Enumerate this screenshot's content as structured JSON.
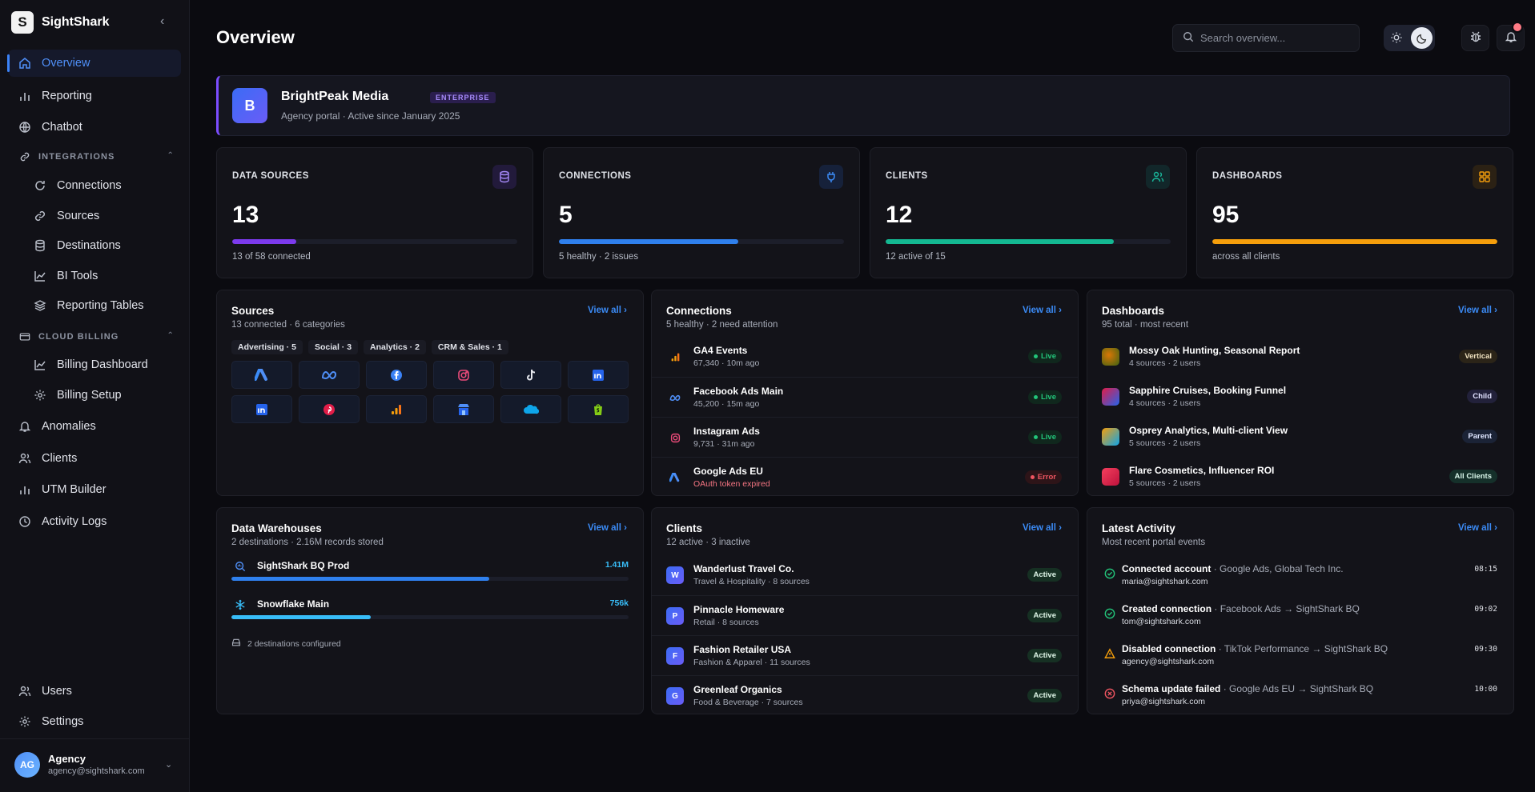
{
  "brand": {
    "name": "SightShark",
    "logo_letter": "S"
  },
  "sidebar": {
    "top_items": [
      {
        "label": "Overview",
        "icon": "home-icon",
        "active": true
      },
      {
        "label": "Reporting",
        "icon": "bar-chart-icon"
      },
      {
        "label": "Chatbot",
        "icon": "globe-icon"
      }
    ],
    "integrations": {
      "label": "INTEGRATIONS",
      "items": [
        "Connections",
        "Sources",
        "Destinations",
        "BI Tools",
        "Reporting Tables"
      ]
    },
    "cloud_billing": {
      "label": "CLOUD BILLING",
      "items": [
        "Billing Dashboard",
        "Billing Setup"
      ]
    },
    "bottom_items": [
      "Anomalies",
      "Clients",
      "UTM Builder",
      "Activity Logs"
    ],
    "footer_items": [
      "Users",
      "Settings"
    ],
    "user": {
      "initials": "AG",
      "name": "Agency",
      "email": "agency@sightshark.com"
    }
  },
  "header": {
    "title": "Overview",
    "search_placeholder": "Search overview..."
  },
  "banner": {
    "logo_letter": "B",
    "name": "BrightPeak Media",
    "badge": "ENTERPRISE",
    "subtitle": "Agency portal · Active since January 2025"
  },
  "stats": [
    {
      "label": "DATA SOURCES",
      "value": "13",
      "sub": "13 of 58 connected",
      "progress": 0.224,
      "color": "#7c3aed",
      "icon_color": "#a78bfa",
      "icon_bg": "#221a3b"
    },
    {
      "label": "CONNECTIONS",
      "value": "5",
      "sub": "5 healthy · 2 issues",
      "progress": 0.63,
      "color": "#2f80ed",
      "icon_color": "#3b8bf6",
      "icon_bg": "#16213a"
    },
    {
      "label": "CLIENTS",
      "value": "12",
      "sub": "12 active of 15",
      "progress": 0.8,
      "color": "#14b892",
      "icon_color": "#19b69a",
      "icon_bg": "#12272a"
    },
    {
      "label": "DASHBOARDS",
      "value": "95",
      "sub": "across all clients",
      "progress": 1.0,
      "color": "#f59e0b",
      "icon_color": "#f59e0b",
      "icon_bg": "#2b2114"
    }
  ],
  "sources": {
    "title": "Sources",
    "subtitle": "13 connected · 6 categories",
    "view_all": "View all",
    "chips": [
      "Advertising · 5",
      "Social · 3",
      "Analytics · 2",
      "CRM & Sales · 1"
    ]
  },
  "connections": {
    "title": "Connections",
    "subtitle": "5 healthy · 2 need attention",
    "view_all": "View all",
    "rows": [
      {
        "name": "GA4 Events",
        "detail": "67,340 · 10m ago",
        "status": "Live"
      },
      {
        "name": "Facebook Ads Main",
        "detail": "45,200 · 15m ago",
        "status": "Live"
      },
      {
        "name": "Instagram Ads",
        "detail": "9,731 · 31m ago",
        "status": "Live"
      },
      {
        "name": "Google Ads EU",
        "detail": "OAuth token expired",
        "status": "Error"
      }
    ]
  },
  "dashboards": {
    "title": "Dashboards",
    "subtitle": "95 total · most recent",
    "view_all": "View all",
    "rows": [
      {
        "name": "Mossy Oak Hunting, Seasonal Report",
        "detail": "4 sources · 2 users",
        "tag": "Vertical"
      },
      {
        "name": "Sapphire Cruises, Booking Funnel",
        "detail": "4 sources · 2 users",
        "tag": "Child"
      },
      {
        "name": "Osprey Analytics, Multi-client View",
        "detail": "5 sources · 2 users",
        "tag": "Parent"
      },
      {
        "name": "Flare Cosmetics, Influencer ROI",
        "detail": "5 sources · 2 users",
        "tag": "All Clients"
      }
    ]
  },
  "warehouses": {
    "title": "Data Warehouses",
    "subtitle": "2 destinations · 2.16M records stored",
    "view_all": "View all",
    "rows": [
      {
        "name": "SightShark BQ Prod",
        "value": "1.41M",
        "progress": 0.65
      },
      {
        "name": "Snowflake Main",
        "value": "756k",
        "progress": 0.35
      }
    ],
    "footer": "2 destinations configured"
  },
  "clients": {
    "title": "Clients",
    "subtitle": "12 active · 3 inactive",
    "view_all": "View all",
    "rows": [
      {
        "initial": "W",
        "name": "Wanderlust Travel Co.",
        "detail": "Travel & Hospitality · 8 sources",
        "status": "Active"
      },
      {
        "initial": "P",
        "name": "Pinnacle Homeware",
        "detail": "Retail · 8 sources",
        "status": "Active"
      },
      {
        "initial": "F",
        "name": "Fashion Retailer USA",
        "detail": "Fashion & Apparel · 11 sources",
        "status": "Active"
      },
      {
        "initial": "G",
        "name": "Greenleaf Organics",
        "detail": "Food & Beverage · 7 sources",
        "status": "Active"
      }
    ]
  },
  "activity": {
    "title": "Latest Activity",
    "subtitle": "Most recent portal events",
    "view_all": "View all",
    "rows": [
      {
        "action": "Connected account",
        "detail": " · Google Ads, Global Tech Inc.",
        "user": "maria@sightshark.com",
        "time": "08:15",
        "kind": "success"
      },
      {
        "action": "Created connection",
        "detail": " · Facebook Ads → SightShark BQ",
        "user": "tom@sightshark.com",
        "time": "09:02",
        "kind": "success"
      },
      {
        "action": "Disabled connection",
        "detail": " · TikTok Performance → SightShark BQ",
        "user": "agency@sightshark.com",
        "time": "09:30",
        "kind": "warning"
      },
      {
        "action": "Schema update failed",
        "detail": " · Google Ads EU → SightShark BQ",
        "user": "priya@sightshark.com",
        "time": "10:00",
        "kind": "error"
      }
    ]
  }
}
